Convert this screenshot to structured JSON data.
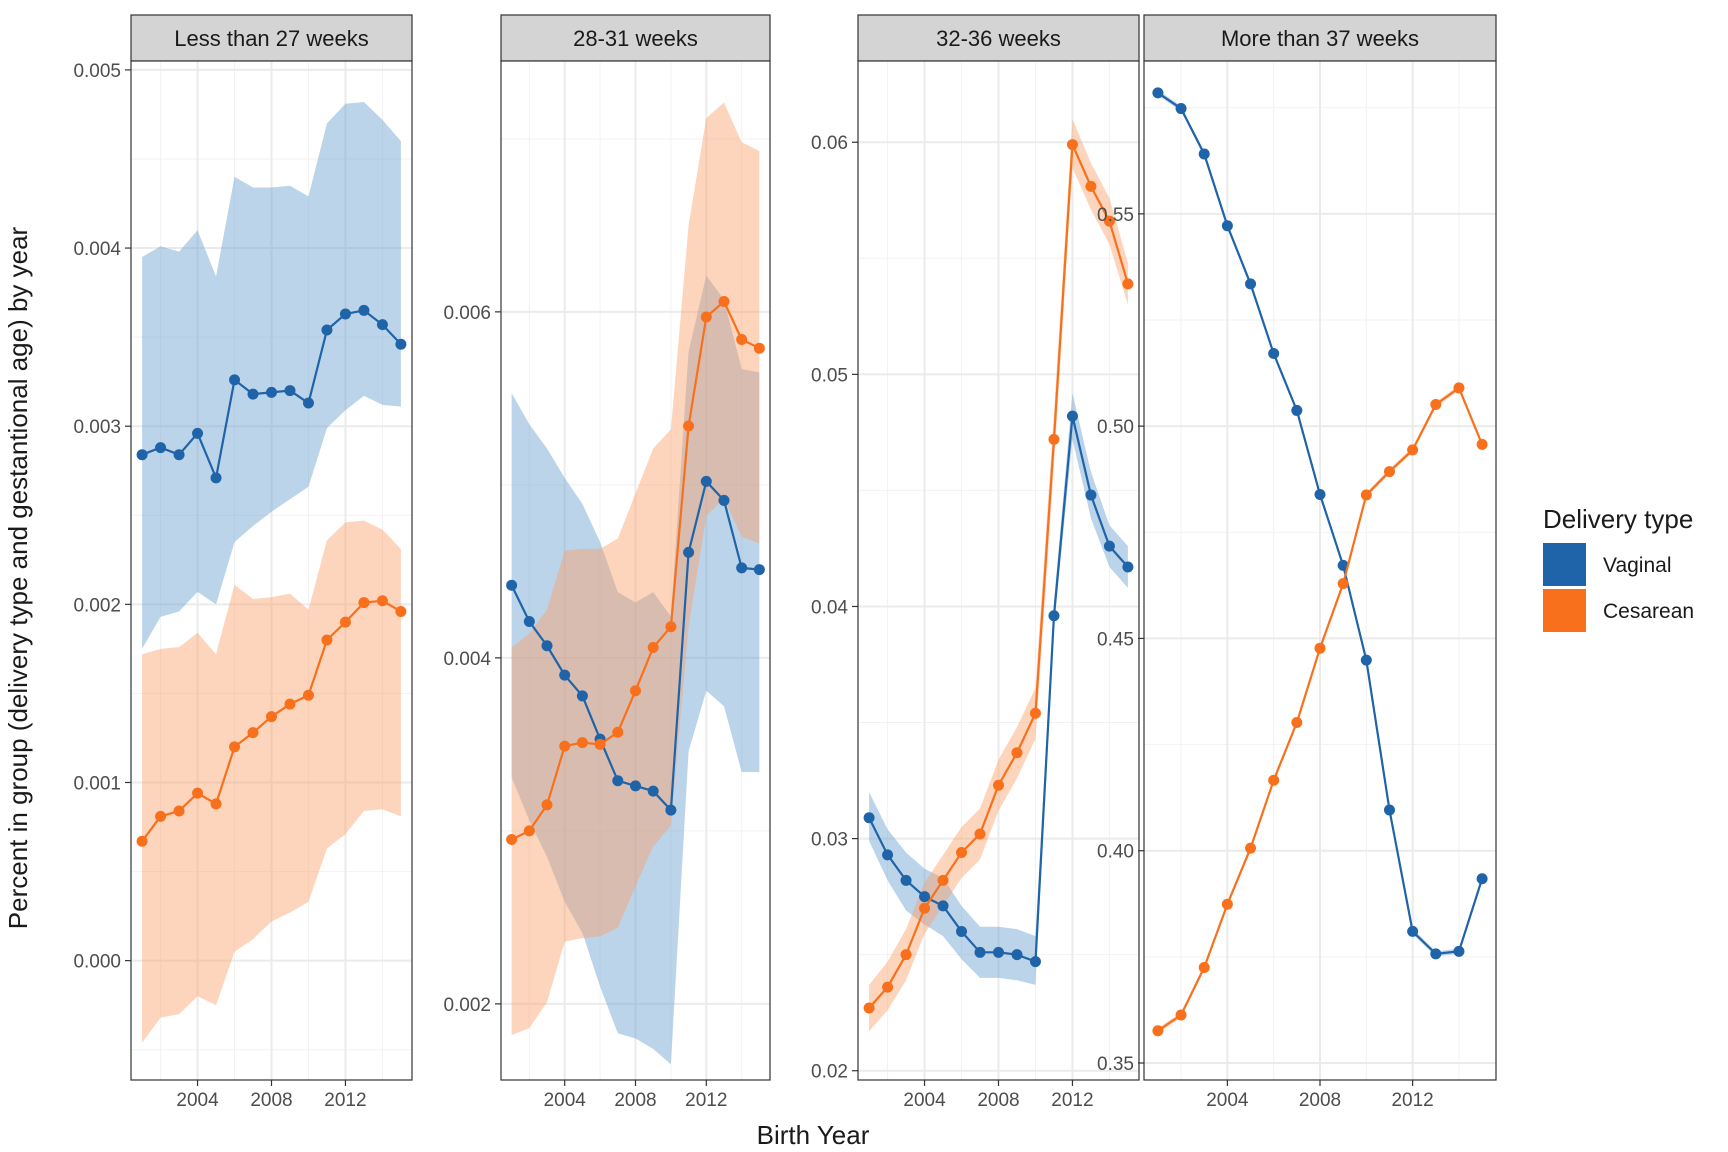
{
  "chart_data": {
    "type": "line",
    "subtype": "faceted line with confidence ribbons",
    "xlabel": "Birth Year",
    "ylabel": "Percent in group (delivery type and gestantional age) by year",
    "x_ticks": [
      2004,
      2008,
      2012
    ],
    "legend": {
      "title": "Delivery type",
      "position": "right",
      "entries": [
        {
          "name": "Vaginal",
          "color": "#1f63a8"
        },
        {
          "name": "Cesarean",
          "color": "#f8701c"
        }
      ]
    },
    "colors": {
      "Vaginal": {
        "line": "#1f63a8",
        "ribbon": "#6a9fcf"
      },
      "Cesarean": {
        "line": "#f8701c",
        "ribbon": "#fba06a"
      },
      "strip_bg": "#d4d4d4",
      "grid": "#ebebeb"
    },
    "x_range": [
      2000.4,
      2015.6
    ],
    "panels": [
      {
        "title": "Less than 27 weeks",
        "ylim": [
          -0.00067,
          0.00505
        ],
        "y_ticks": [
          "0.000",
          "0.001",
          "0.002",
          "0.003",
          "0.004",
          "0.005"
        ],
        "y_tick_values": [
          0,
          0.001,
          0.002,
          0.003,
          0.004,
          0.005
        ],
        "x": [
          2001,
          2002,
          2003,
          2004,
          2005,
          2006,
          2007,
          2008,
          2009,
          2010,
          2011,
          2012,
          2013,
          2014,
          2015
        ],
        "series": [
          {
            "name": "Vaginal",
            "values": [
              0.00284,
              0.00288,
              0.00284,
              0.00296,
              0.00271,
              0.00326,
              0.00318,
              0.00319,
              0.0032,
              0.00313,
              0.00354,
              0.00363,
              0.00365,
              0.00357,
              0.00346
            ],
            "lower": [
              0.00175,
              0.00193,
              0.00196,
              0.00207,
              0.002,
              0.00235,
              0.00244,
              0.00252,
              0.00259,
              0.00266,
              0.00299,
              0.00309,
              0.00317,
              0.00312,
              0.00311
            ],
            "upper": [
              0.00395,
              0.00401,
              0.00398,
              0.0041,
              0.00384,
              0.0044,
              0.00434,
              0.00434,
              0.00435,
              0.00429,
              0.0047,
              0.00481,
              0.00482,
              0.00472,
              0.0046
            ]
          },
          {
            "name": "Cesarean",
            "values": [
              0.00067,
              0.00081,
              0.00084,
              0.00094,
              0.00088,
              0.0012,
              0.00128,
              0.00137,
              0.00144,
              0.00149,
              0.0018,
              0.0019,
              0.00201,
              0.00202,
              0.00196
            ],
            "lower": [
              -0.00046,
              -0.00032,
              -0.0003,
              -0.0002,
              -0.00025,
              5e-05,
              0.00012,
              0.00022,
              0.00027,
              0.00033,
              0.00063,
              0.00071,
              0.00084,
              0.00085,
              0.00081
            ],
            "upper": [
              0.00172,
              0.00175,
              0.00176,
              0.00184,
              0.00172,
              0.00211,
              0.00203,
              0.00204,
              0.00206,
              0.00197,
              0.00236,
              0.00246,
              0.00247,
              0.00242,
              0.00231
            ]
          }
        ]
      },
      {
        "title": "28-31 weeks",
        "ylim": [
          0.00156,
          0.00745
        ],
        "y_ticks": [
          "0.002",
          "0.004",
          "0.006"
        ],
        "y_tick_values": [
          0.002,
          0.004,
          0.006
        ],
        "x": [
          2001,
          2002,
          2003,
          2004,
          2005,
          2006,
          2007,
          2008,
          2009,
          2010,
          2011,
          2012,
          2013,
          2014,
          2015
        ],
        "series": [
          {
            "name": "Vaginal",
            "values": [
              0.00442,
              0.00421,
              0.00407,
              0.0039,
              0.00378,
              0.00353,
              0.00329,
              0.00326,
              0.00323,
              0.00312,
              0.00461,
              0.00502,
              0.00491,
              0.00452,
              0.00451
            ],
            "lower": [
              0.00331,
              0.00306,
              0.00285,
              0.00259,
              0.00241,
              0.0021,
              0.00183,
              0.0018,
              0.00174,
              0.00165,
              0.00346,
              0.00381,
              0.00372,
              0.00334,
              0.00334
            ],
            "upper": [
              0.00553,
              0.00535,
              0.00521,
              0.00504,
              0.00489,
              0.00467,
              0.00438,
              0.00432,
              0.00438,
              0.00424,
              0.00577,
              0.00621,
              0.00607,
              0.00567,
              0.00565
            ]
          },
          {
            "name": "Cesarean",
            "values": [
              0.00295,
              0.003,
              0.00315,
              0.00349,
              0.00351,
              0.0035,
              0.00357,
              0.00381,
              0.00406,
              0.00418,
              0.00534,
              0.00597,
              0.00606,
              0.00584,
              0.00579
            ],
            "lower": [
              0.00182,
              0.00186,
              0.00201,
              0.00236,
              0.00238,
              0.00239,
              0.00244,
              0.00268,
              0.00291,
              0.00303,
              0.00418,
              0.00482,
              0.00492,
              0.0047,
              0.00466
            ],
            "upper": [
              0.00406,
              0.00414,
              0.00428,
              0.00462,
              0.00463,
              0.00463,
              0.00469,
              0.00495,
              0.00521,
              0.00532,
              0.0065,
              0.00712,
              0.00721,
              0.00698,
              0.00693
            ]
          }
        ]
      },
      {
        "title": "32-36 weeks",
        "ylim": [
          0.0196,
          0.0635
        ],
        "y_ticks": [
          "0.02",
          "0.03",
          "0.04",
          "0.05",
          "0.06"
        ],
        "y_tick_values": [
          0.02,
          0.03,
          0.04,
          0.05,
          0.06
        ],
        "x": [
          2001,
          2002,
          2003,
          2004,
          2005,
          2006,
          2007,
          2008,
          2009,
          2010,
          2011,
          2012,
          2013,
          2014,
          2015
        ],
        "series": [
          {
            "name": "Vaginal",
            "values": [
              0.0309,
              0.0293,
              0.0282,
              0.0275,
              0.0271,
              0.026,
              0.0251,
              0.0251,
              0.025,
              0.0247,
              0.0396,
              0.0482,
              0.0448,
              0.0426,
              0.0417
            ],
            "lower": [
              0.0299,
              0.0282,
              0.0269,
              0.0263,
              0.0258,
              0.0248,
              0.024,
              0.024,
              0.0239,
              0.0237,
              0.0391,
              0.0472,
              0.0438,
              0.0417,
              0.0408
            ],
            "upper": [
              0.032,
              0.0304,
              0.0294,
              0.0287,
              0.0283,
              0.0271,
              0.0262,
              0.0262,
              0.0261,
              0.0258,
              0.0402,
              0.0492,
              0.0458,
              0.0435,
              0.0426
            ]
          },
          {
            "name": "Cesarean",
            "values": [
              0.0227,
              0.0236,
              0.025,
              0.027,
              0.0282,
              0.0294,
              0.0302,
              0.0323,
              0.0337,
              0.0354,
              0.0472,
              0.0599,
              0.0581,
              0.0566,
              0.0539
            ],
            "lower": [
              0.0217,
              0.0226,
              0.0239,
              0.0259,
              0.0271,
              0.0283,
              0.0291,
              0.0312,
              0.0326,
              0.0343,
              0.0461,
              0.0589,
              0.0571,
              0.0556,
              0.053
            ],
            "upper": [
              0.0237,
              0.0247,
              0.0261,
              0.0281,
              0.0293,
              0.0305,
              0.0313,
              0.0334,
              0.0348,
              0.0365,
              0.0483,
              0.061,
              0.0591,
              0.0576,
              0.0548
            ]
          }
        ]
      },
      {
        "title": "More than 37 weeks",
        "ylim": [
          0.346,
          0.586
        ],
        "y_ticks": [
          "0.35",
          "0.40",
          "0.45",
          "0.50",
          "0.55"
        ],
        "y_tick_values": [
          0.35,
          0.4,
          0.45,
          0.5,
          0.55
        ],
        "x": [
          2001,
          2002,
          2003,
          2004,
          2005,
          2006,
          2007,
          2008,
          2009,
          2010,
          2011,
          2012,
          2013,
          2014,
          2015
        ],
        "series": [
          {
            "name": "Vaginal",
            "values": [
              0.5785,
              0.5748,
              0.5641,
              0.5472,
              0.5335,
              0.5171,
              0.5037,
              0.4839,
              0.4672,
              0.4449,
              0.4096,
              0.381,
              0.3757,
              0.3763,
              0.3934
            ],
            "lower": [
              0.5779,
              0.5742,
              0.5635,
              0.5466,
              0.5329,
              0.5165,
              0.5031,
              0.4833,
              0.4666,
              0.4443,
              0.409,
              0.3804,
              0.3751,
              0.3757,
              0.3928
            ],
            "upper": [
              0.5791,
              0.5754,
              0.5647,
              0.5478,
              0.5341,
              0.5177,
              0.5043,
              0.4845,
              0.4678,
              0.4455,
              0.4102,
              0.3816,
              0.3763,
              0.3769,
              0.394
            ]
          },
          {
            "name": "Cesarean",
            "values": [
              0.3576,
              0.3613,
              0.3725,
              0.3874,
              0.4006,
              0.4166,
              0.4302,
              0.4477,
              0.4629,
              0.4838,
              0.4893,
              0.4944,
              0.5051,
              0.509,
              0.4957
            ],
            "lower": [
              0.357,
              0.3607,
              0.3719,
              0.3868,
              0.4,
              0.416,
              0.4296,
              0.4471,
              0.4623,
              0.4832,
              0.4887,
              0.4938,
              0.5045,
              0.5084,
              0.4951
            ],
            "upper": [
              0.3582,
              0.3619,
              0.3731,
              0.388,
              0.4012,
              0.4172,
              0.4308,
              0.4483,
              0.4635,
              0.4844,
              0.4899,
              0.495,
              0.5057,
              0.5096,
              0.4963
            ]
          }
        ]
      }
    ]
  }
}
